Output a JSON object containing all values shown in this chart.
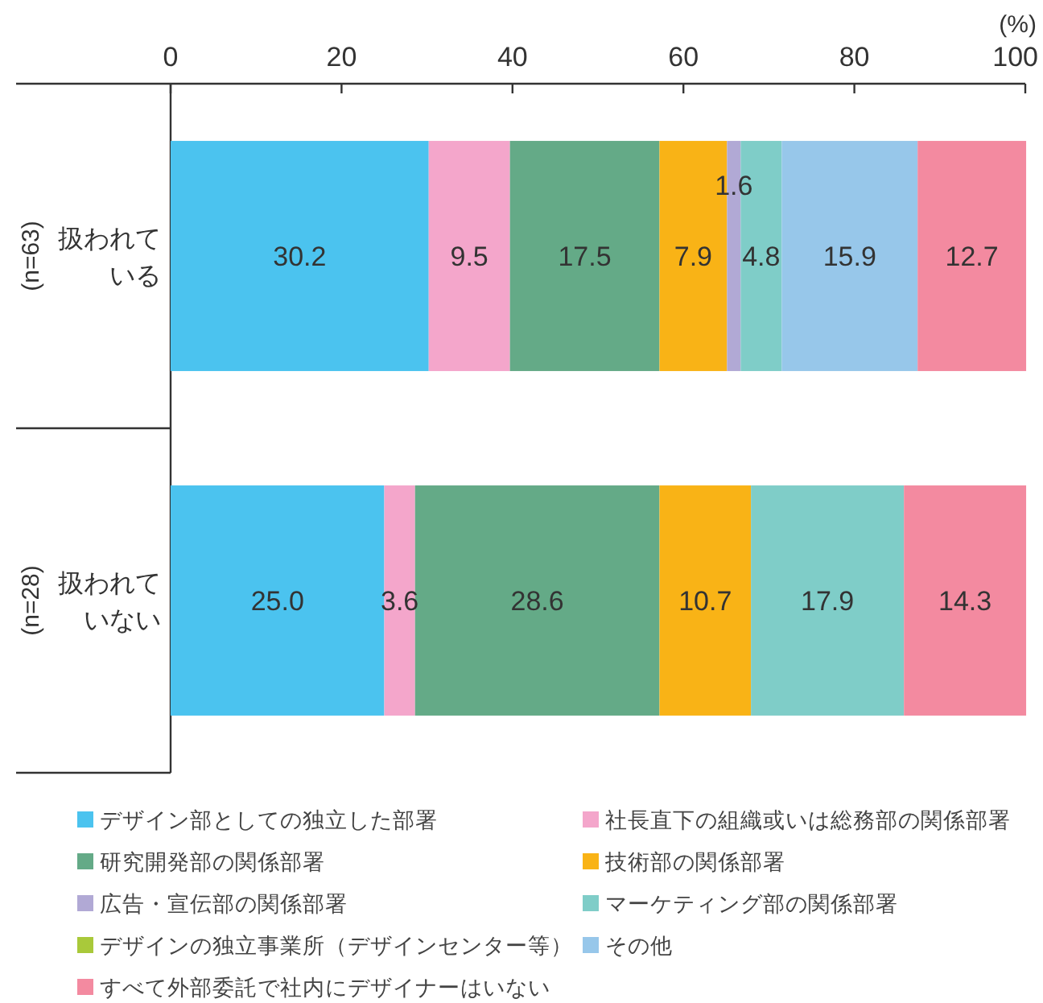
{
  "chart_data": {
    "type": "bar",
    "orientation": "horizontal",
    "stacked": true,
    "categories": [
      "扱われている",
      "扱われていない"
    ],
    "xlim": [
      0,
      100
    ],
    "xticks": [
      0,
      20,
      40,
      60,
      80,
      100
    ],
    "xlabel": "(%)",
    "legend": "bottom",
    "annotations": [
      "(n=63)",
      "(n=28)"
    ],
    "series": [
      {
        "name": "デザイン部としての独立した部署",
        "color": "#4bc3ef",
        "values": [
          30.2,
          25.0
        ],
        "value_labels": [
          "30.2",
          "25.0"
        ]
      },
      {
        "name": "社長直下の組織或いは総務部の関係部署",
        "color": "#f4a6cb",
        "values": [
          9.5,
          3.6
        ],
        "value_labels": [
          "9.5",
          "3.6"
        ]
      },
      {
        "name": "研究開発部の関係部署",
        "color": "#64aa87",
        "values": [
          17.5,
          28.6
        ],
        "value_labels": [
          "17.5",
          "28.6"
        ]
      },
      {
        "name": "技術部の関係部署",
        "color": "#f9b316",
        "values": [
          7.9,
          10.7
        ],
        "value_labels": [
          "7.9",
          "10.7"
        ]
      },
      {
        "name": "広告・宣伝部の関係部署",
        "color": "#b1a9d5",
        "values": [
          1.6,
          null
        ],
        "value_labels": [
          "1.6",
          null
        ]
      },
      {
        "name": "マーケティング部の関係部署",
        "color": "#7fcdc8",
        "values": [
          4.8,
          17.9
        ],
        "value_labels": [
          "4.8",
          "17.9"
        ]
      },
      {
        "name": "デザインの独立事業所（デザインセンター等）",
        "color": "#a9c93a",
        "values": [
          null,
          null
        ],
        "value_labels": [
          null,
          null
        ]
      },
      {
        "name": "その他",
        "color": "#97c7ea",
        "values": [
          15.9,
          null
        ],
        "value_labels": [
          "15.9",
          null
        ]
      },
      {
        "name": "すべて外部委託で社内にデザイナーはいない",
        "color": "#f38aa0",
        "values": [
          12.7,
          14.3
        ],
        "value_labels": [
          "12.7",
          "14.3"
        ]
      }
    ]
  }
}
